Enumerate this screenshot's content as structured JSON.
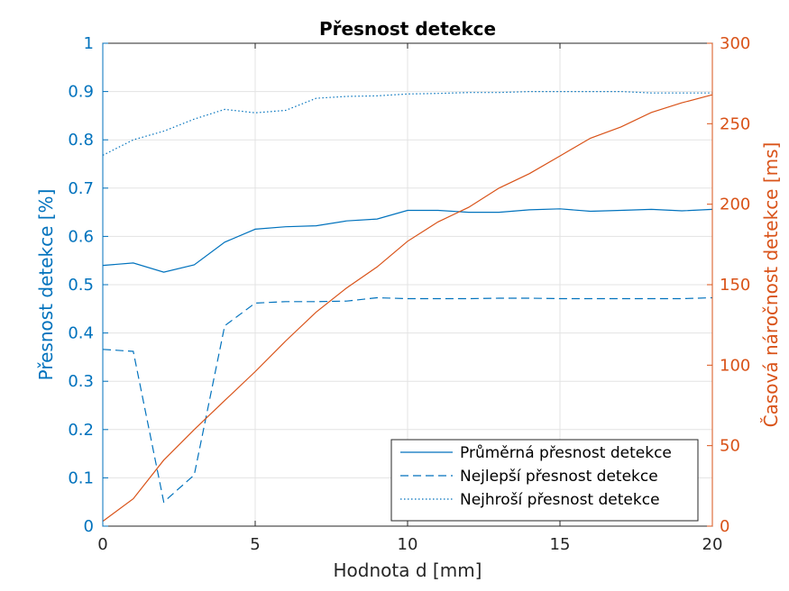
{
  "chart_data": {
    "type": "line",
    "title": "Přesnost detekce",
    "xlabel": "Hodnota d [mm]",
    "ylabel_left": "Přesnost detekce [%]",
    "ylabel_right": "Časová náročnost detekce [ms]",
    "xlim": [
      0,
      20
    ],
    "ylim_left": [
      0,
      1
    ],
    "ylim_right": [
      0,
      300
    ],
    "x_ticks": [
      "0",
      "5",
      "10",
      "15",
      "20"
    ],
    "y_left_ticks": [
      "0",
      "0.1",
      "0.2",
      "0.3",
      "0.4",
      "0.5",
      "0.6",
      "0.7",
      "0.8",
      "0.9",
      "1"
    ],
    "y_right_ticks": [
      "0",
      "50",
      "100",
      "150",
      "200",
      "250",
      "300"
    ],
    "grid": true,
    "legend_position": "bottom-right",
    "x": [
      0,
      1,
      2,
      3,
      4,
      5,
      6,
      7,
      8,
      9,
      10,
      11,
      12,
      13,
      14,
      15,
      16,
      17,
      18,
      19,
      20
    ],
    "series": [
      {
        "name": "Průměrná přesnost detekce",
        "axis": "left",
        "style": "solid",
        "color": "#0072BD",
        "values": [
          0.54,
          0.545,
          0.526,
          0.541,
          0.588,
          0.615,
          0.62,
          0.622,
          0.632,
          0.636,
          0.654,
          0.654,
          0.65,
          0.65,
          0.655,
          0.657,
          0.652,
          0.654,
          0.656,
          0.653,
          0.656
        ]
      },
      {
        "name": "Nejlepší přesnost detekce",
        "axis": "left",
        "style": "dashed",
        "color": "#0072BD",
        "values": [
          0.366,
          0.362,
          0.05,
          0.106,
          0.415,
          0.462,
          0.465,
          0.465,
          0.466,
          0.473,
          0.471,
          0.471,
          0.471,
          0.472,
          0.472,
          0.471,
          0.471,
          0.471,
          0.471,
          0.471,
          0.473
        ]
      },
      {
        "name": "Nejhroší přesnost detekce",
        "axis": "left",
        "style": "dotted",
        "color": "#0072BD",
        "values": [
          0.768,
          0.8,
          0.818,
          0.843,
          0.863,
          0.856,
          0.861,
          0.886,
          0.89,
          0.891,
          0.895,
          0.896,
          0.898,
          0.898,
          0.9,
          0.9,
          0.9,
          0.9,
          0.897,
          0.897,
          0.897
        ]
      },
      {
        "name": "",
        "axis": "right",
        "style": "solid",
        "color": "#D95319",
        "values": [
          3,
          17,
          41,
          60,
          78,
          96,
          115,
          133,
          148,
          161,
          177,
          189,
          198,
          210,
          219,
          230,
          241,
          248,
          257,
          263,
          268
        ]
      }
    ]
  }
}
